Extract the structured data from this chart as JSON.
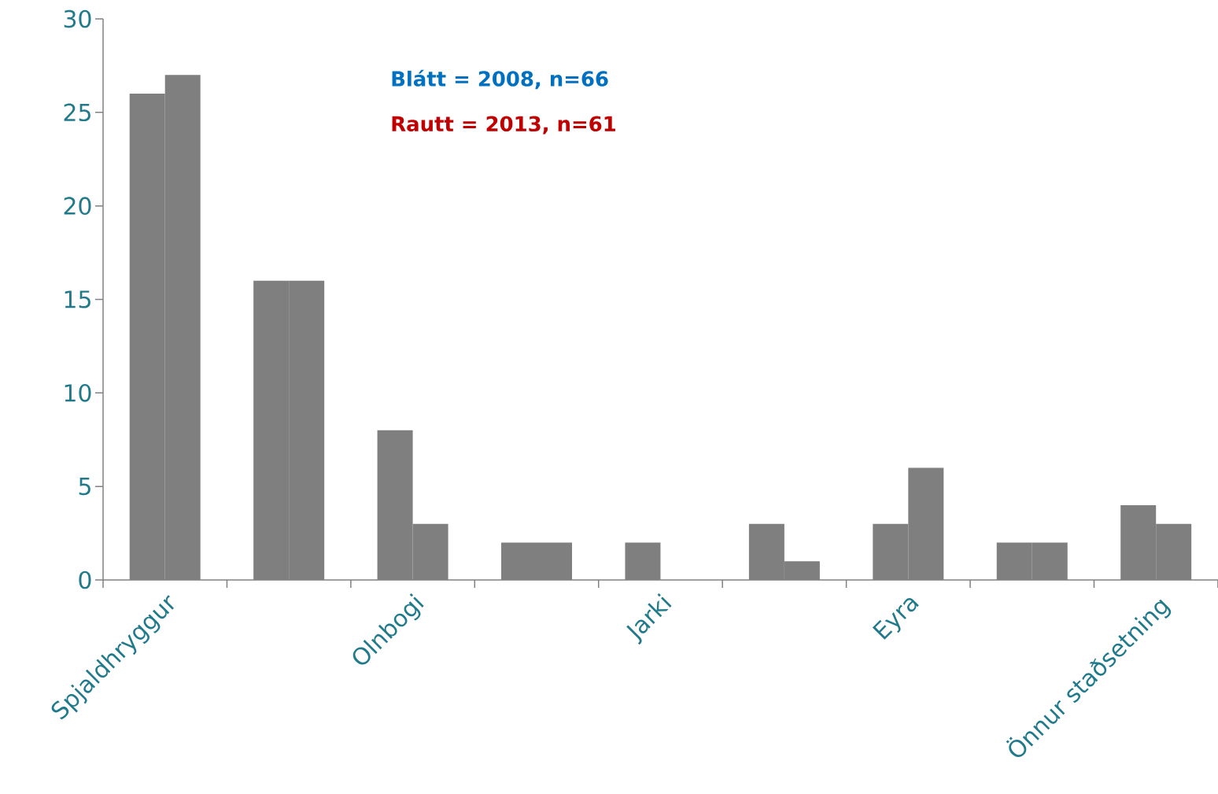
{
  "chart_data": {
    "type": "bar",
    "categories": [
      "Spjaldhryggur",
      null,
      "Olnbogi",
      null,
      "Jarki",
      null,
      "Eyra",
      null,
      "Önnur staðsetning"
    ],
    "series": [
      {
        "color": "#7f7f7f",
        "values": [
          26,
          16,
          8,
          2,
          2,
          3,
          3,
          2,
          4
        ]
      },
      {
        "color": "#7f7f7f",
        "values": [
          27,
          16,
          3,
          2,
          0,
          1,
          6,
          2,
          3
        ]
      }
    ],
    "ylim": [
      0,
      30
    ],
    "yticks": [
      0,
      5,
      10,
      15,
      20,
      25,
      30
    ],
    "annotations": [
      "Blátt  = 2008, n=66",
      "Rautt = 2013, n=61"
    ]
  }
}
